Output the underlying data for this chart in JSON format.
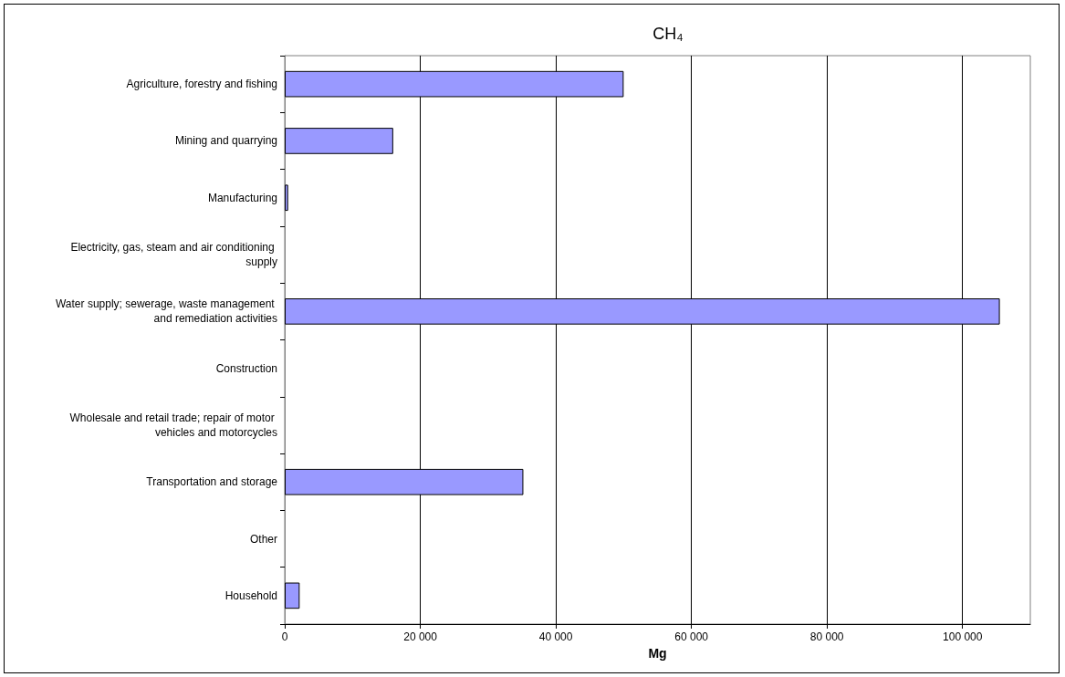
{
  "chart_data": {
    "type": "bar",
    "orientation": "horizontal",
    "title": "CH₄",
    "xlabel": "Mg",
    "categories": [
      "Agriculture, forestry and fishing",
      "Mining and quarrying",
      "Manufacturing",
      "Electricity, gas, steam and air conditioning supply",
      "Water supply; sewerage, waste management and remediation activities",
      "Construction",
      "Wholesale and retail trade; repair of motor vehicles and motorcycles",
      "Transportation and storage",
      "Other",
      "Household"
    ],
    "values": [
      50000,
      16000,
      500,
      null,
      105500,
      null,
      null,
      35200,
      null,
      2200
    ],
    "color": "#9999ff",
    "xlim": [
      0,
      110000
    ],
    "xticks": [
      0,
      {
        "value": 20000,
        "label": "20 000"
      },
      {
        "value": 40000,
        "label": "40 000"
      },
      {
        "value": 60000,
        "label": "60 000"
      },
      {
        "value": 80000,
        "label": "80 000"
      },
      {
        "value": 100000,
        "label": "100 000"
      }
    ],
    "grid": "x"
  }
}
